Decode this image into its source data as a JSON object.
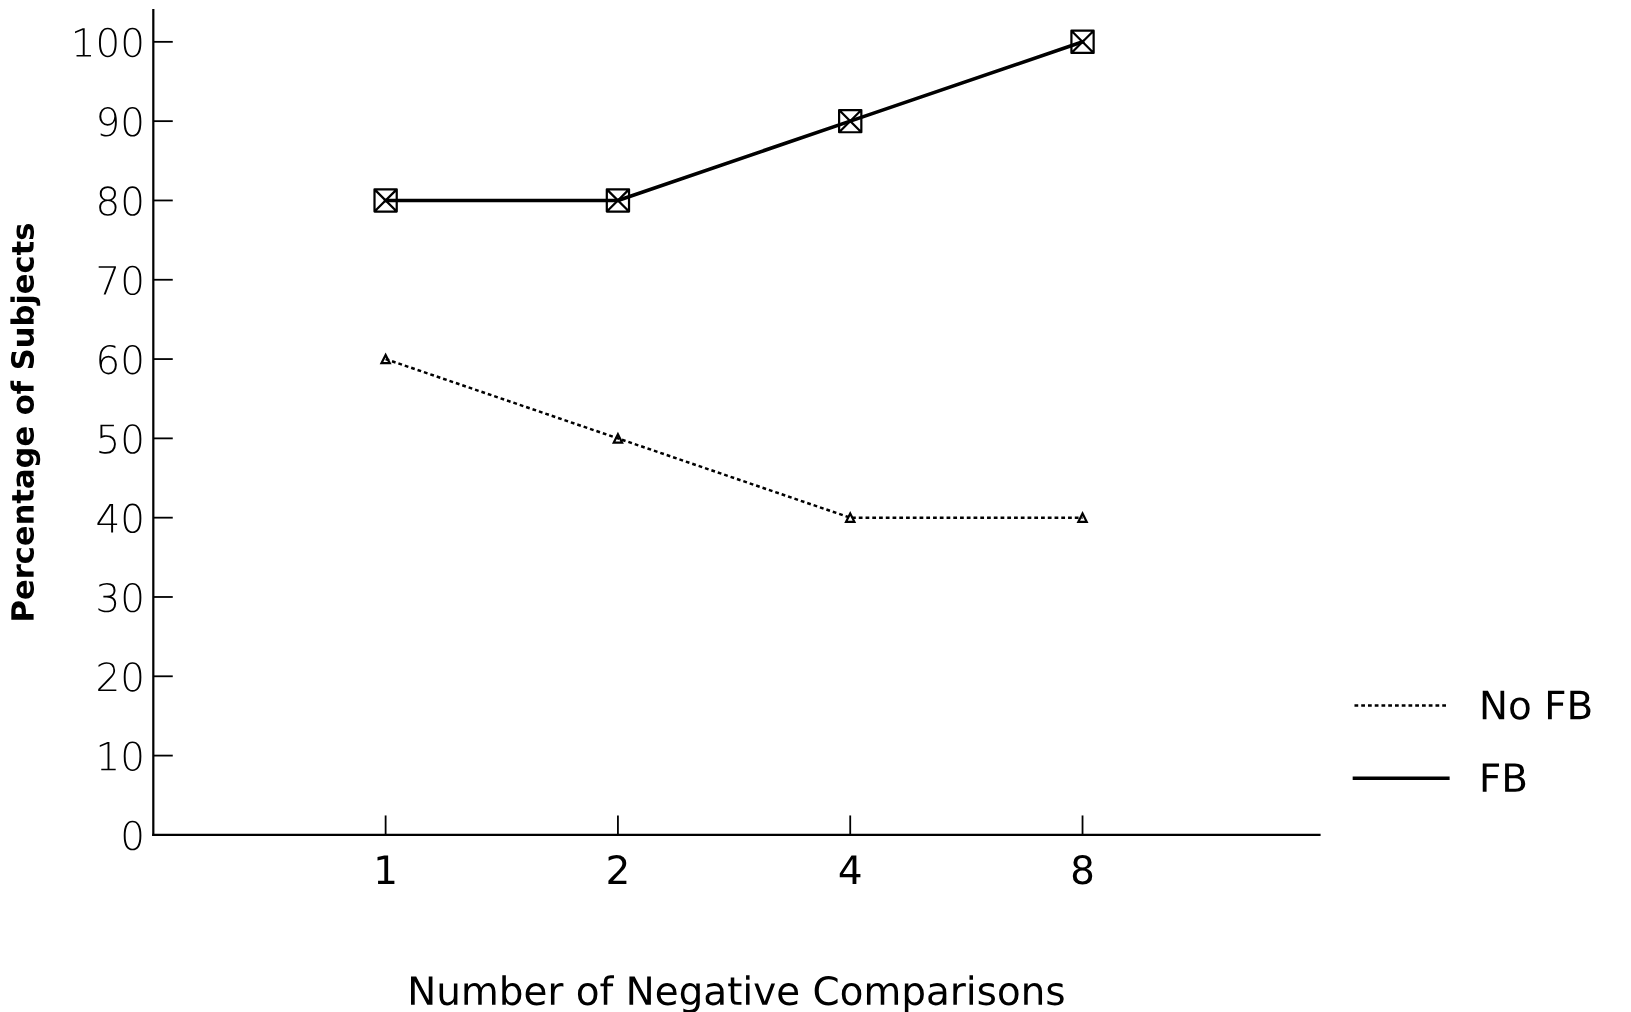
{
  "chart_data": {
    "type": "line",
    "xlabel": "Number of Negative Comparisons",
    "ylabel": "Percentage of Subjects",
    "categories": [
      "1",
      "2",
      "4",
      "8"
    ],
    "series": [
      {
        "name": "No FB",
        "color": "#000000",
        "values": [
          60,
          50,
          40,
          40
        ],
        "line_style": "dotted",
        "marker": "triangle"
      },
      {
        "name": "FB",
        "color": "#000000",
        "values": [
          80,
          80,
          90,
          100
        ],
        "line_style": "solid",
        "marker": "cross"
      }
    ],
    "ylim": [
      0,
      104
    ],
    "yticks": [
      0,
      10,
      20,
      30,
      40,
      50,
      60,
      70,
      80,
      90,
      100
    ],
    "grid": false,
    "legend": "bottom right"
  }
}
